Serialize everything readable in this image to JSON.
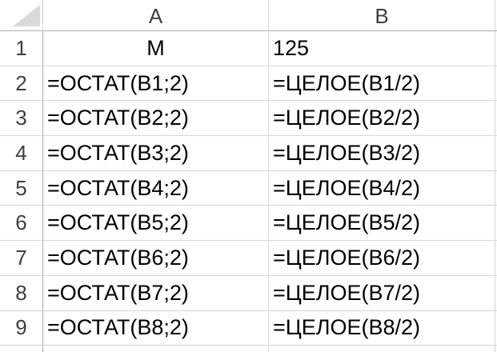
{
  "columns": {
    "a": "A",
    "b": "B"
  },
  "rows": [
    {
      "num": "1",
      "a": "М",
      "b": "125"
    },
    {
      "num": "2",
      "a": "=ОСТАТ(B1;2)",
      "b": "=ЦЕЛОЕ(B1/2)"
    },
    {
      "num": "3",
      "a": "=ОСТАТ(B2;2)",
      "b": "=ЦЕЛОЕ(B2/2)"
    },
    {
      "num": "4",
      "a": "=ОСТАТ(B3;2)",
      "b": "=ЦЕЛОЕ(B3/2)"
    },
    {
      "num": "5",
      "a": "=ОСТАТ(B4;2)",
      "b": "=ЦЕЛОЕ(B4/2)"
    },
    {
      "num": "6",
      "a": "=ОСТАТ(B5;2)",
      "b": "=ЦЕЛОЕ(B5/2)"
    },
    {
      "num": "7",
      "a": "=ОСТАТ(B6;2)",
      "b": "=ЦЕЛОЕ(B6/2)"
    },
    {
      "num": "8",
      "a": "=ОСТАТ(B7;2)",
      "b": "=ЦЕЛОЕ(B7/2)"
    },
    {
      "num": "9",
      "a": "=ОСТАТ(B8;2)",
      "b": "=ЦЕЛОЕ(B8/2)"
    }
  ],
  "icons": {
    "select_all": "select-all-triangle"
  },
  "colors": {
    "background": "#ffffff",
    "gridline": "#d6d6d6",
    "header_border": "#ababab",
    "header_text": "#3f3f3f",
    "cell_text": "#000000",
    "select_all_triangle": "#dadada"
  }
}
